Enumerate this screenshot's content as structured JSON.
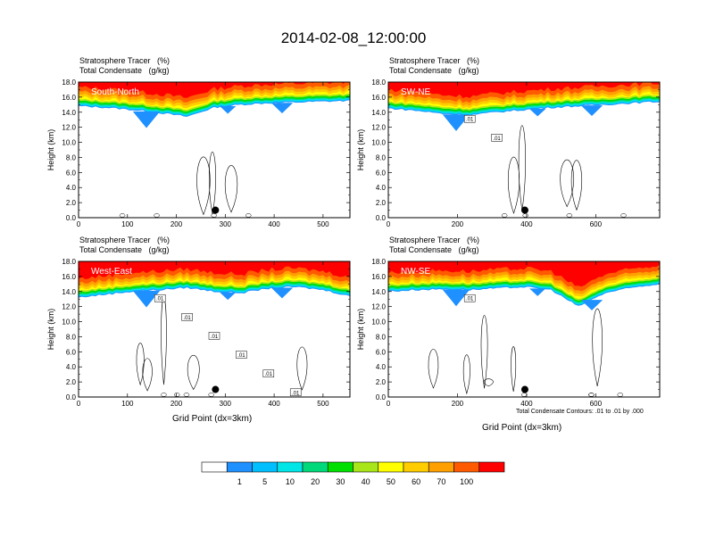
{
  "page": {
    "title": "2014-02-08_12:00:00"
  },
  "colorbar": {
    "levels": [
      "1",
      "5",
      "10",
      "20",
      "30",
      "40",
      "50",
      "60",
      "70",
      "100"
    ],
    "colors": [
      "#ffffff",
      "#1e90ff",
      "#00bfff",
      "#00e5e5",
      "#00d97a",
      "#00e000",
      "#a8e61a",
      "#ffff00",
      "#ffcc00",
      "#ffa000",
      "#ff5a00",
      "#ff0000"
    ]
  },
  "contour_note": "Total Condensate Contours: .01 to .01 by .000",
  "chart_data": [
    {
      "type": "heatmap",
      "panel": "South-North",
      "subtitle_1": "Stratosphere Tracer   (%)",
      "subtitle_2": "Total Condensate   (g/kg)",
      "ylabel": "Height (km)",
      "xlabel": "",
      "yticks": [
        "0.0",
        "2.0",
        "4.0",
        "6.0",
        "8.0",
        "10.0",
        "12.0",
        "14.0",
        "16.0",
        "18.0"
      ],
      "xticks": [
        "0",
        "100",
        "200",
        "300",
        "400",
        "500"
      ],
      "xlim": [
        0,
        555
      ],
      "ylim": [
        0,
        18
      ],
      "tracer_top_km": [
        14.8,
        14.6,
        14.3,
        13.9,
        13.4,
        14.6,
        15.0,
        15.2,
        15.3,
        15.4,
        15.5
      ],
      "contour_labels": [],
      "marker_x": 280
    },
    {
      "type": "heatmap",
      "panel": "SW-NE",
      "subtitle_1": "Stratosphere Tracer   (%)",
      "subtitle_2": "Total Condensate   (g/kg)",
      "ylabel": "Height (km)",
      "xlabel": "",
      "yticks": [
        "0.0",
        "2.0",
        "4.0",
        "6.0",
        "8.0",
        "10.0",
        "12.0",
        "14.0",
        "16.0",
        "18.0"
      ],
      "xticks": [
        "0",
        "200",
        "400",
        "600"
      ],
      "xlim": [
        0,
        785
      ],
      "ylim": [
        0,
        18
      ],
      "tracer_top_km": [
        14.5,
        14.2,
        13.8,
        13.6,
        14.0,
        14.3,
        14.6,
        14.8,
        15.0,
        15.2,
        15.4
      ],
      "contour_labels": [
        ".01",
        ".01"
      ],
      "marker_x": 395
    },
    {
      "type": "heatmap",
      "panel": "West-East",
      "subtitle_1": "Stratosphere Tracer   (%)",
      "subtitle_2": "Total Condensate   (g/kg)",
      "ylabel": "Height (km)",
      "xlabel": "Grid Point (dx=3km)",
      "yticks": [
        "0.0",
        "2.0",
        "4.0",
        "6.0",
        "8.0",
        "10.0",
        "12.0",
        "14.0",
        "16.0",
        "18.0"
      ],
      "xticks": [
        "0",
        "100",
        "200",
        "300",
        "400",
        "500"
      ],
      "xlim": [
        0,
        555
      ],
      "ylim": [
        0,
        18
      ],
      "tracer_top_km": [
        13.2,
        13.6,
        14.0,
        14.2,
        14.5,
        14.0,
        13.8,
        14.4,
        14.6,
        14.2,
        13.4
      ],
      "contour_labels": [
        ".01",
        ".01",
        ".01",
        ".01",
        ".01",
        ".01"
      ],
      "marker_x": 280
    },
    {
      "type": "heatmap",
      "panel": "NW-SE",
      "subtitle_1": "Stratosphere Tracer   (%)",
      "subtitle_2": "Total Condensate   (g/kg)",
      "ylabel": "Height (km)",
      "xlabel": "Grid Point (dx=3km)",
      "yticks": [
        "0.0",
        "2.0",
        "4.0",
        "6.0",
        "8.0",
        "10.0",
        "12.0",
        "14.0",
        "16.0",
        "18.0"
      ],
      "xticks": [
        "0",
        "200",
        "400",
        "600"
      ],
      "xlim": [
        0,
        785
      ],
      "ylim": [
        0,
        18
      ],
      "tracer_top_km": [
        14.0,
        14.2,
        14.3,
        14.2,
        14.4,
        14.6,
        14.2,
        12.0,
        13.8,
        14.5,
        15.0
      ],
      "contour_labels": [
        ".01"
      ],
      "marker_x": 395
    }
  ]
}
